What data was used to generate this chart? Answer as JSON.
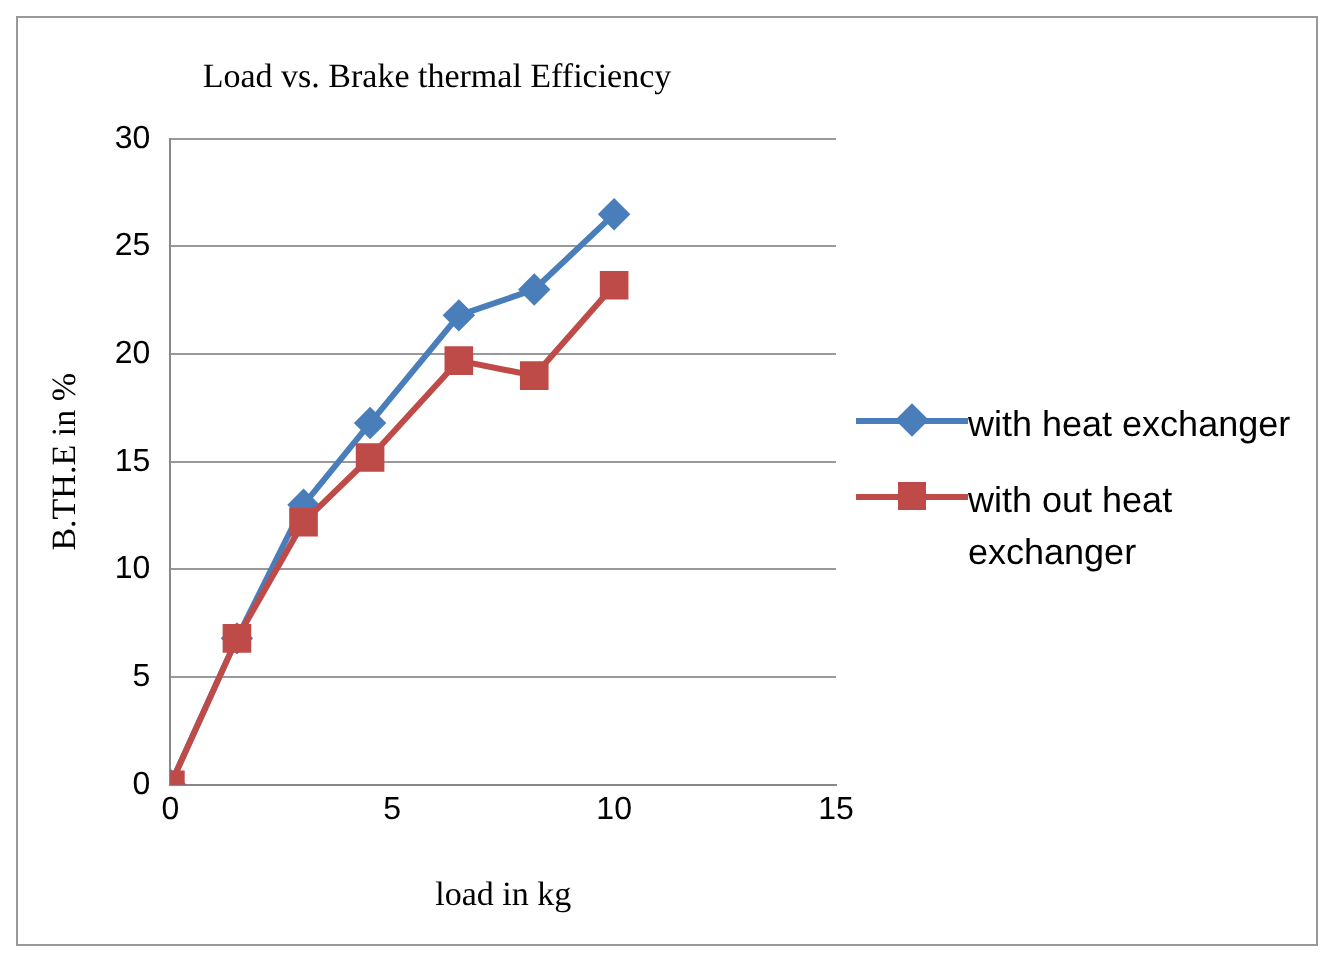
{
  "chart_data": {
    "type": "line",
    "title": "Load vs. Brake thermal Efficiency",
    "xlabel": "load in kg",
    "ylabel": "B.TH.E in %",
    "x": [
      0,
      1.5,
      3,
      4.5,
      6.5,
      8.2,
      10
    ],
    "series": [
      {
        "name": "with heat exchanger",
        "color": "#4a7ebb",
        "marker": "diamond",
        "values": [
          0,
          6.8,
          13,
          16.8,
          21.8,
          23,
          26.5
        ]
      },
      {
        "name": "with out heat exchanger",
        "color": "#be4b48",
        "marker": "square",
        "values": [
          0,
          6.8,
          12.2,
          15.2,
          19.7,
          19,
          23.2
        ]
      }
    ],
    "xlim": [
      0,
      15
    ],
    "xticks": [
      0,
      5,
      10,
      15
    ],
    "ylim": [
      0,
      30
    ],
    "yticks": [
      0,
      5,
      10,
      15,
      20,
      25,
      30
    ],
    "grid": "y",
    "legend": "right"
  }
}
